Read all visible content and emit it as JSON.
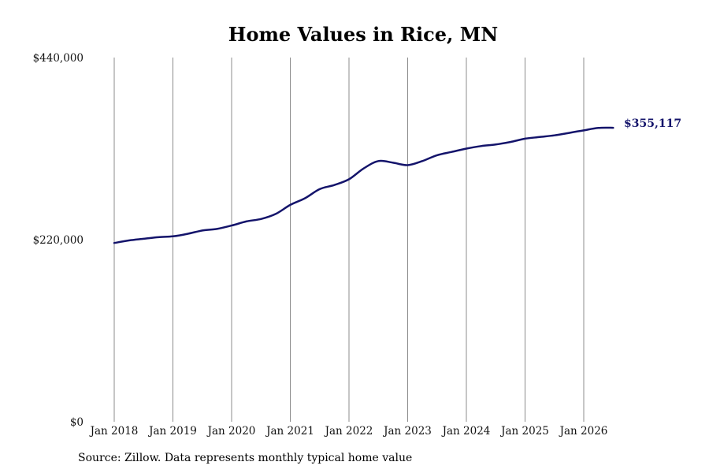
{
  "chart_data": {
    "type": "line",
    "title": "Home Values in Rice, MN",
    "ylim": [
      0,
      440000
    ],
    "y_ticks": [
      {
        "value": 0,
        "label": "$0"
      },
      {
        "value": 220000,
        "label": "$220,000"
      },
      {
        "value": 440000,
        "label": "$440,000"
      }
    ],
    "x_range": [
      "2018-01",
      "2026-07"
    ],
    "x_ticks": [
      {
        "x": "2018-01",
        "label": "Jan 2018"
      },
      {
        "x": "2019-01",
        "label": "Jan 2019"
      },
      {
        "x": "2020-01",
        "label": "Jan 2020"
      },
      {
        "x": "2021-01",
        "label": "Jan 2021"
      },
      {
        "x": "2022-01",
        "label": "Jan 2022"
      },
      {
        "x": "2023-01",
        "label": "Jan 2023"
      },
      {
        "x": "2024-01",
        "label": "Jan 2024"
      },
      {
        "x": "2025-01",
        "label": "Jan 2025"
      },
      {
        "x": "2026-01",
        "label": "Jan 2026"
      }
    ],
    "grid": "vertical",
    "line_color": "#14146b",
    "series": [
      {
        "points": [
          {
            "x": "2018-01",
            "y": 216000
          },
          {
            "x": "2018-04",
            "y": 219000
          },
          {
            "x": "2018-07",
            "y": 221000
          },
          {
            "x": "2018-10",
            "y": 223000
          },
          {
            "x": "2019-01",
            "y": 224000
          },
          {
            "x": "2019-04",
            "y": 227000
          },
          {
            "x": "2019-07",
            "y": 231000
          },
          {
            "x": "2019-10",
            "y": 233000
          },
          {
            "x": "2020-01",
            "y": 237000
          },
          {
            "x": "2020-04",
            "y": 242000
          },
          {
            "x": "2020-07",
            "y": 245000
          },
          {
            "x": "2020-10",
            "y": 251000
          },
          {
            "x": "2021-01",
            "y": 262000
          },
          {
            "x": "2021-04",
            "y": 270000
          },
          {
            "x": "2021-07",
            "y": 281000
          },
          {
            "x": "2021-10",
            "y": 286000
          },
          {
            "x": "2022-01",
            "y": 293000
          },
          {
            "x": "2022-04",
            "y": 306000
          },
          {
            "x": "2022-07",
            "y": 315000
          },
          {
            "x": "2022-10",
            "y": 313000
          },
          {
            "x": "2023-01",
            "y": 310000
          },
          {
            "x": "2023-04",
            "y": 315000
          },
          {
            "x": "2023-07",
            "y": 322000
          },
          {
            "x": "2023-10",
            "y": 326000
          },
          {
            "x": "2024-01",
            "y": 330000
          },
          {
            "x": "2024-04",
            "y": 333000
          },
          {
            "x": "2024-07",
            "y": 335000
          },
          {
            "x": "2024-10",
            "y": 338000
          },
          {
            "x": "2025-01",
            "y": 342000
          },
          {
            "x": "2025-04",
            "y": 344000
          },
          {
            "x": "2025-07",
            "y": 346000
          },
          {
            "x": "2025-10",
            "y": 349000
          },
          {
            "x": "2026-01",
            "y": 352000
          },
          {
            "x": "2026-04",
            "y": 355000
          },
          {
            "x": "2026-07",
            "y": 355117
          }
        ]
      }
    ],
    "end_label": "$355,117"
  },
  "footer": {
    "source": "Source: Zillow. Data represents monthly typical home value"
  }
}
